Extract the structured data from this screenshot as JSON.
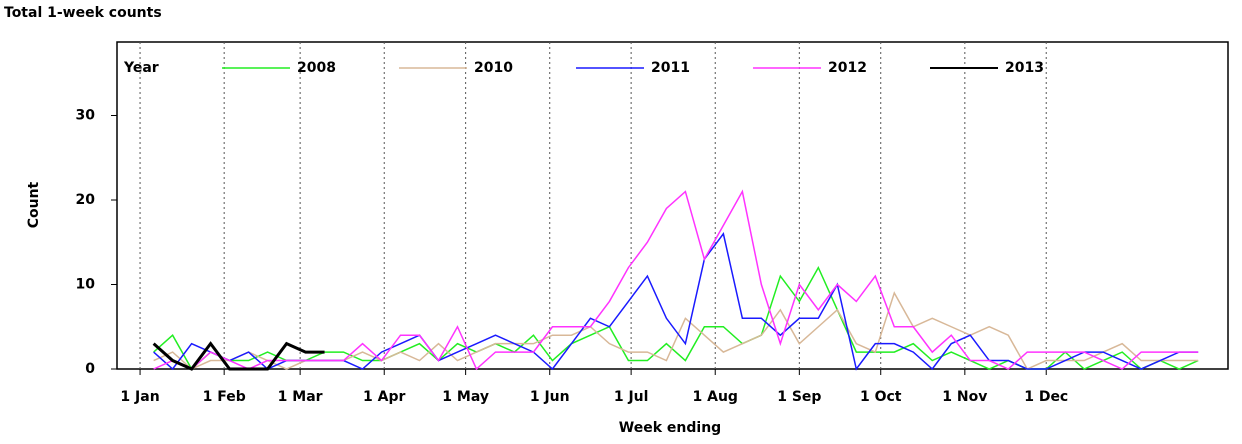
{
  "chart_data": {
    "type": "line",
    "title": "Total 1-week counts",
    "x_label": "Week ending",
    "y_label": "Count",
    "legend_title": "Year",
    "legend": "top-left",
    "grid": "x",
    "x": [
      6,
      13,
      20,
      27,
      34,
      41,
      48,
      55,
      62,
      69,
      76,
      83,
      90,
      97,
      104,
      111,
      118,
      125,
      132,
      139,
      146,
      153,
      160,
      167,
      174,
      181,
      188,
      195,
      202,
      209,
      216,
      223,
      230,
      237,
      244,
      251,
      258,
      265,
      272,
      279,
      286,
      293,
      300,
      307,
      314,
      321,
      328,
      335,
      342,
      349,
      356,
      363,
      370,
      377,
      384,
      391
    ],
    "xlim": [
      -7.5,
      402
    ],
    "xticks": [
      {
        "value": 1,
        "label": "1 Jan"
      },
      {
        "value": 32,
        "label": "1 Feb"
      },
      {
        "value": 60,
        "label": "1 Mar"
      },
      {
        "value": 91,
        "label": "1 Apr"
      },
      {
        "value": 121,
        "label": "1 May"
      },
      {
        "value": 152,
        "label": "1 Jun"
      },
      {
        "value": 182,
        "label": "1 Jul"
      },
      {
        "value": 213,
        "label": "1 Aug"
      },
      {
        "value": 244,
        "label": "1 Sep"
      },
      {
        "value": 274,
        "label": "1 Oct"
      },
      {
        "value": 305,
        "label": "1 Nov"
      },
      {
        "value": 335,
        "label": "1 Dec"
      }
    ],
    "ylim": [
      0,
      38.7
    ],
    "yticks": [
      0,
      10,
      20,
      30
    ],
    "series": [
      {
        "name": "2008",
        "color": "#22ee22",
        "values": [
          2,
          4,
          0,
          2,
          1,
          1,
          2,
          1,
          1,
          2,
          2,
          1,
          1,
          2,
          3,
          1,
          3,
          2,
          3,
          2,
          4,
          1,
          3,
          4,
          5,
          1,
          1,
          3,
          1,
          5,
          5,
          3,
          4,
          11,
          8,
          12,
          7,
          2,
          2,
          2,
          3,
          1,
          2,
          1,
          0,
          1,
          0,
          0,
          2,
          0,
          1,
          2,
          0,
          1,
          0,
          1
        ]
      },
      {
        "name": "2010",
        "color": "#d8b898",
        "values": [
          1,
          2,
          0,
          1,
          1,
          2,
          1,
          0,
          1,
          1,
          1,
          2,
          1,
          2,
          1,
          3,
          1,
          2,
          3,
          3,
          3,
          4,
          4,
          5,
          3,
          2,
          2,
          1,
          6,
          4,
          2,
          3,
          4,
          7,
          3,
          5,
          7,
          3,
          2,
          9,
          5,
          6,
          5,
          4,
          5,
          4,
          0,
          1,
          1,
          1,
          2,
          3,
          1,
          1,
          1,
          1
        ]
      },
      {
        "name": "2011",
        "color": "#1a1aff",
        "values": [
          2,
          0,
          3,
          2,
          1,
          2,
          0,
          1,
          1,
          1,
          1,
          0,
          2,
          3,
          4,
          1,
          2,
          3,
          4,
          3,
          2,
          0,
          3,
          6,
          5,
          8,
          11,
          6,
          3,
          13,
          16,
          6,
          6,
          4,
          6,
          6,
          10,
          0,
          3,
          3,
          2,
          0,
          3,
          4,
          1,
          1,
          0,
          0,
          1,
          2,
          2,
          1,
          0,
          1,
          2,
          2
        ]
      },
      {
        "name": "2012",
        "color": "#ff33ff",
        "values": [
          0,
          1,
          0,
          2,
          1,
          0,
          1,
          1,
          1,
          1,
          1,
          3,
          1,
          4,
          4,
          1,
          5,
          0,
          2,
          2,
          2,
          5,
          5,
          5,
          8,
          12,
          15,
          19,
          21,
          13,
          17,
          21,
          10,
          3,
          10,
          7,
          10,
          8,
          11,
          5,
          5,
          2,
          4,
          1,
          1,
          0,
          2,
          2,
          2,
          2,
          1,
          0,
          2,
          2,
          2,
          2
        ]
      },
      {
        "name": "2013",
        "color": "#000000",
        "values": [
          3,
          1,
          0,
          3,
          0,
          0,
          0,
          3,
          2,
          2,
          null,
          null,
          null,
          null,
          null,
          null,
          null,
          null,
          null,
          null,
          null,
          null,
          null,
          null,
          null,
          null,
          null,
          null,
          null,
          null,
          null,
          null,
          null,
          null,
          null,
          null,
          null,
          null,
          null,
          null,
          null,
          null,
          null,
          null,
          null,
          null,
          null,
          null,
          null,
          null,
          null,
          null,
          null,
          null,
          null,
          null
        ]
      }
    ]
  }
}
